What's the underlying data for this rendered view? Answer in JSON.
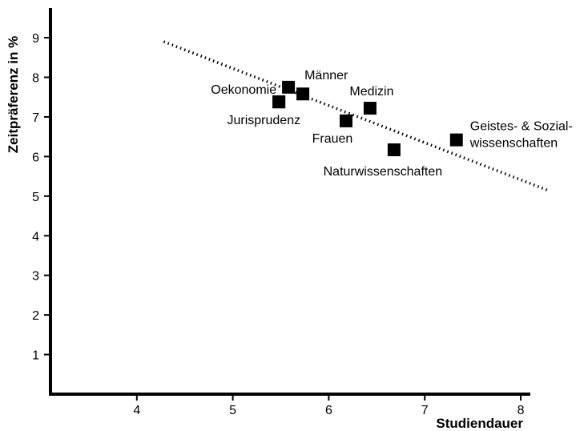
{
  "chart_data": {
    "type": "scatter",
    "title": "",
    "xlabel": "Studiendauer",
    "ylabel": "Zeitpräferenz in %",
    "xlim": [
      3.1,
      8.1
    ],
    "ylim": [
      0,
      9.75
    ],
    "xticks": [
      4,
      5,
      6,
      7,
      8
    ],
    "yticks": [
      1,
      2,
      3,
      4,
      5,
      6,
      7,
      8,
      9
    ],
    "grid": false,
    "legend": "none",
    "marker": "square",
    "marker_color": "#000000",
    "points": [
      {
        "label": "Männer",
        "x": 5.58,
        "y": 7.75
      },
      {
        "label": "Oekonomie",
        "x": 5.48,
        "y": 7.38
      },
      {
        "label": "",
        "x": 5.73,
        "y": 7.58
      },
      {
        "label": "Jurisprudenz",
        "x": 5.48,
        "y": 7.38
      },
      {
        "label": "Medizin",
        "x": 6.43,
        "y": 7.22
      },
      {
        "label": "Frauen",
        "x": 6.18,
        "y": 6.9
      },
      {
        "label": "Naturwissenschaften",
        "x": 6.68,
        "y": 6.17
      },
      {
        "label": "Geistes- & Sozial-|wissenschaften",
        "x": 7.33,
        "y": 6.42
      }
    ],
    "trendline": {
      "style": "dotted",
      "color": "#000000",
      "from": {
        "x": 4.28,
        "y": 8.9
      },
      "to": {
        "x": 8.28,
        "y": 5.15
      }
    }
  }
}
